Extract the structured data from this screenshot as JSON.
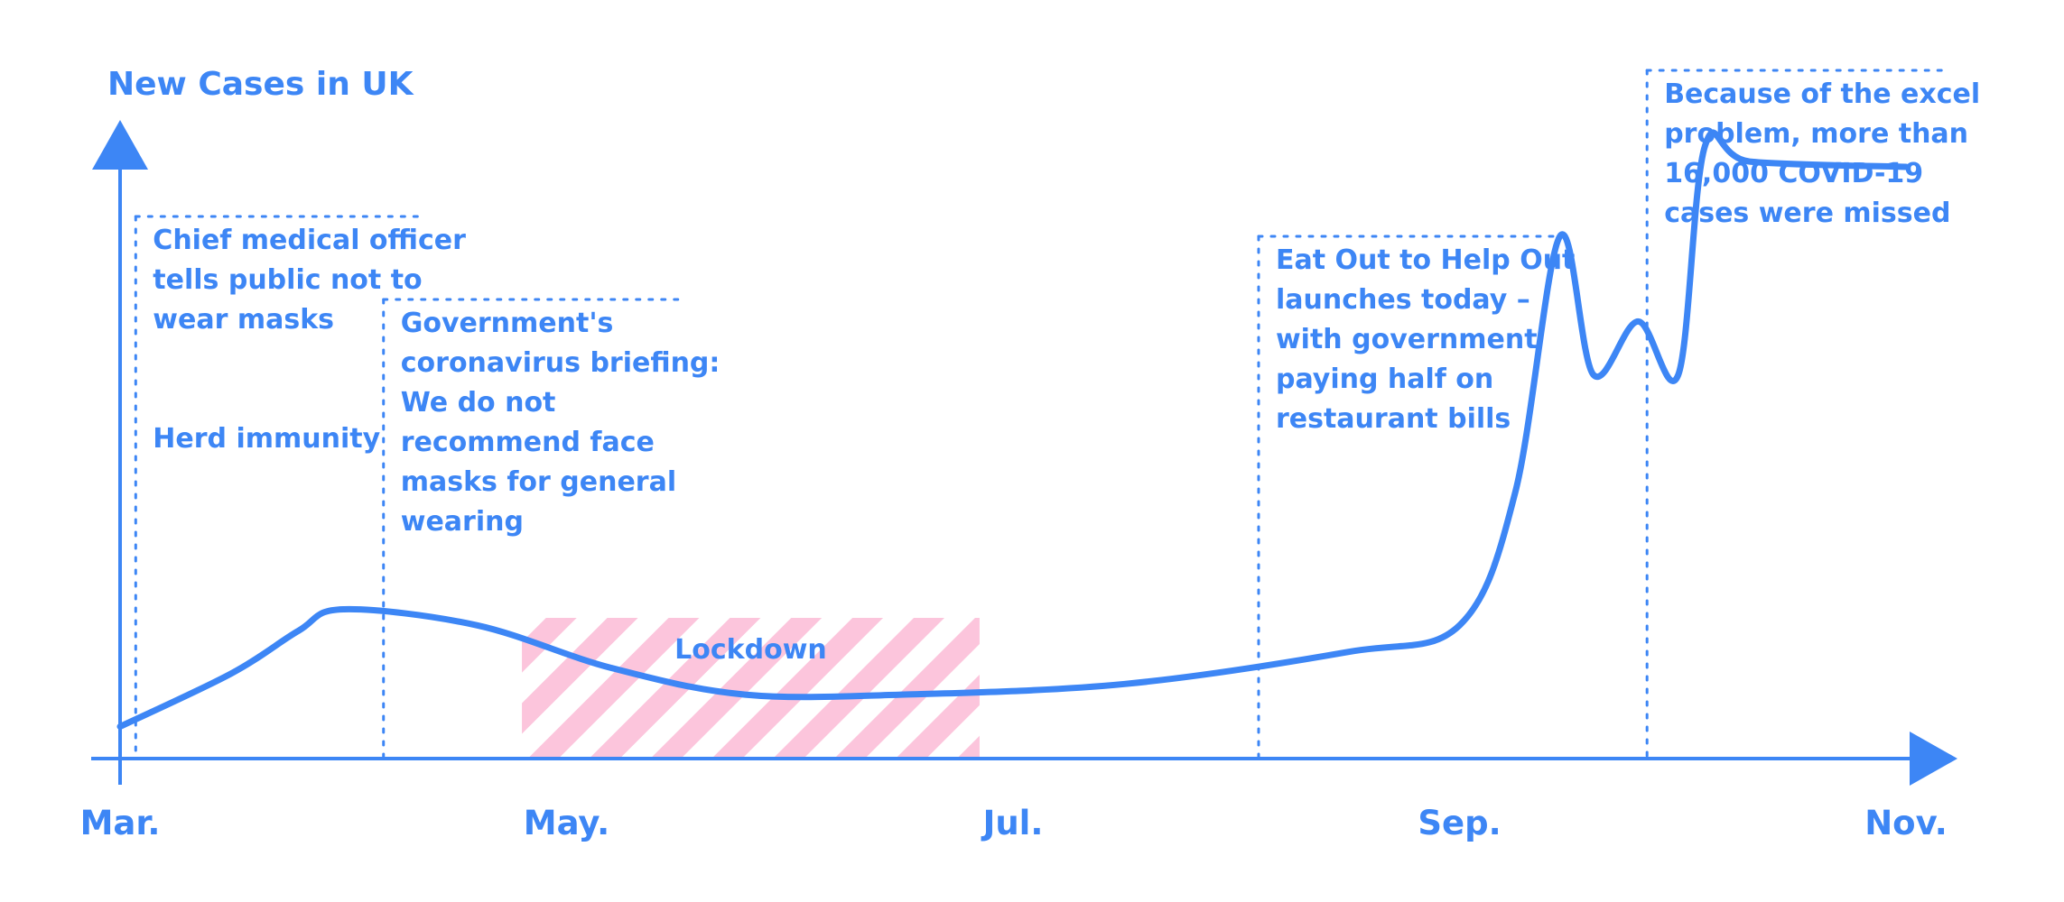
{
  "chart_data": {
    "type": "line",
    "title": "New Cases in UK",
    "xlabel": "",
    "ylabel": "",
    "xlim": [
      3,
      11
    ],
    "x_ticks": [
      {
        "label": "Mar.",
        "x": 3
      },
      {
        "label": "May.",
        "x": 5
      },
      {
        "label": "Jul.",
        "x": 7
      },
      {
        "label": "Sep.",
        "x": 9
      },
      {
        "label": "Nov.",
        "x": 11
      }
    ],
    "series": [
      {
        "color": "#3d86f5",
        "points": [
          [
            3.0,
            0.06
          ],
          [
            3.5,
            0.16
          ],
          [
            3.8,
            0.24
          ],
          [
            4.0,
            0.28
          ],
          [
            4.6,
            0.25
          ],
          [
            5.2,
            0.17
          ],
          [
            5.8,
            0.12
          ],
          [
            6.5,
            0.12
          ],
          [
            7.5,
            0.14
          ],
          [
            8.5,
            0.2
          ],
          [
            9.0,
            0.25
          ],
          [
            9.25,
            0.5
          ],
          [
            9.45,
            0.98
          ],
          [
            9.6,
            0.72
          ],
          [
            9.8,
            0.82
          ],
          [
            9.98,
            0.72
          ],
          [
            10.1,
            1.15
          ],
          [
            10.3,
            1.12
          ],
          [
            11.0,
            1.11
          ]
        ]
      }
    ],
    "shaded_regions": [
      {
        "label": "Lockdown",
        "x_start": 4.8,
        "x_end": 6.85,
        "color": "#fcc5dc"
      }
    ],
    "annotations": [
      {
        "x": 3.07,
        "lines": [
          "Chief medical officer",
          "tells public not to",
          "wear masks",
          "",
          "",
          "Herd immunity"
        ]
      },
      {
        "x": 4.18,
        "lines": [
          "Government's",
          "coronavirus briefing:",
          "We do not",
          "recommend face",
          "masks for general",
          "wearing"
        ]
      },
      {
        "x": 8.1,
        "lines": [
          "Eat Out to Help Out",
          "launches today –",
          "with government",
          "paying half on",
          "restaurant bills"
        ]
      },
      {
        "x": 9.84,
        "lines": [
          "Because of the excel",
          "problem, more than",
          "16,000 COVID-19",
          "cases were missed"
        ]
      }
    ]
  }
}
